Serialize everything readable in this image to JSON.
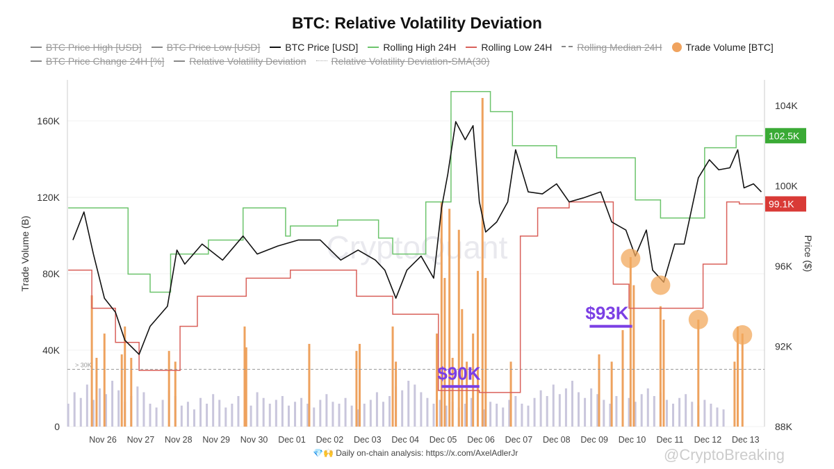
{
  "chart_data": {
    "type": "bar+line",
    "title": "BTC: Relative Volatility Deviation",
    "legend": [
      {
        "name": "BTC Price High [USD]",
        "color": "#888888",
        "hidden": true,
        "style": "line"
      },
      {
        "name": "BTC Price Low [USD]",
        "color": "#888888",
        "hidden": true,
        "style": "line"
      },
      {
        "name": "BTC Price [USD]",
        "color": "#111111",
        "hidden": false,
        "style": "line"
      },
      {
        "name": "Rolling High 24H",
        "color": "#6cc46c",
        "hidden": false,
        "style": "line"
      },
      {
        "name": "Rolling Low 24H",
        "color": "#d9605a",
        "hidden": false,
        "style": "line"
      },
      {
        "name": "Rolling Median 24H",
        "color": "#888888",
        "hidden": true,
        "style": "dash"
      },
      {
        "name": "Trade Volume [BTC]",
        "color": "#f0a35e",
        "hidden": false,
        "style": "dot"
      },
      {
        "name": "BTC Price Change 24H [%]",
        "color": "#888888",
        "hidden": true,
        "style": "line"
      },
      {
        "name": "Relative Volatility Deviation",
        "color": "#888888",
        "hidden": true,
        "style": "line"
      },
      {
        "name": "Relative Volatility Deviation-SMA(30)",
        "color": "#aaaaaa",
        "hidden": true,
        "style": "dot-line"
      }
    ],
    "legend_placement": "top",
    "x_ticks": [
      "Nov 26",
      "Nov 27",
      "Nov 28",
      "Nov 29",
      "Nov 30",
      "Dec 01",
      "Dec 02",
      "Dec 03",
      "Dec 04",
      "Dec 05",
      "Dec 06",
      "Dec 07",
      "Dec 08",
      "Dec 09",
      "Dec 10",
      "Dec 11",
      "Dec 12",
      "Dec 13"
    ],
    "y_left": {
      "label": "Trade Volume (B)",
      "ticks": [
        "0",
        "40K",
        "80K",
        "120K",
        "160K"
      ],
      "range": [
        0,
        180000
      ]
    },
    "y_right": {
      "label": "Price ($)",
      "ticks": [
        "88K",
        "92K",
        "96K",
        "100K",
        "104K"
      ],
      "range": [
        88000,
        105500
      ]
    },
    "threshold": {
      "label": "> 30K",
      "value": 30000
    },
    "price": [
      [
        "11-25 05:00",
        97300
      ],
      [
        "11-25 12:00",
        98700
      ],
      [
        "11-25 18:00",
        96600
      ],
      [
        "11-26 01:00",
        94400
      ],
      [
        "11-26 08:00",
        93700
      ],
      [
        "11-26 14:00",
        92300
      ],
      [
        "11-26 23:00",
        91600
      ],
      [
        "11-27 06:00",
        93000
      ],
      [
        "11-27 17:00",
        94000
      ],
      [
        "11-27 23:00",
        96800
      ],
      [
        "11-28 04:00",
        96100
      ],
      [
        "11-28 15:00",
        97100
      ],
      [
        "11-29 04:00",
        96300
      ],
      [
        "11-29 17:00",
        97500
      ],
      [
        "11-30 02:00",
        96600
      ],
      [
        "11-30 15:00",
        97000
      ],
      [
        "12-01 04:00",
        97300
      ],
      [
        "12-01 18:00",
        97300
      ],
      [
        "12-02 07:00",
        96300
      ],
      [
        "12-02 18:00",
        96800
      ],
      [
        "12-03 05:00",
        96300
      ],
      [
        "12-03 11:00",
        95800
      ],
      [
        "12-03 18:00",
        94400
      ],
      [
        "12-04 01:00",
        95800
      ],
      [
        "12-04 10:00",
        96500
      ],
      [
        "12-04 18:00",
        95400
      ],
      [
        "12-04 23:00",
        98900
      ],
      [
        "12-05 03:00",
        100600
      ],
      [
        "12-05 08:00",
        103200
      ],
      [
        "12-05 14:00",
        102300
      ],
      [
        "12-05 19:00",
        103000
      ],
      [
        "12-05 23:00",
        99200
      ],
      [
        "12-06 03:00",
        97700
      ],
      [
        "12-06 10:00",
        98200
      ],
      [
        "12-06 17:00",
        99200
      ],
      [
        "12-06 22:00",
        101800
      ],
      [
        "12-07 06:00",
        99700
      ],
      [
        "12-07 15:00",
        99600
      ],
      [
        "12-08 00:00",
        100100
      ],
      [
        "12-08 08:00",
        99200
      ],
      [
        "12-08 17:00",
        99400
      ],
      [
        "12-09 04:00",
        99700
      ],
      [
        "12-09 11:00",
        98200
      ],
      [
        "12-09 20:00",
        97800
      ],
      [
        "12-10 02:00",
        96500
      ],
      [
        "12-10 09:00",
        97800
      ],
      [
        "12-10 13:00",
        95800
      ],
      [
        "12-10 20:00",
        95200
      ],
      [
        "12-11 03:00",
        97100
      ],
      [
        "12-11 09:00",
        97100
      ],
      [
        "12-11 18:00",
        100400
      ],
      [
        "12-12 01:00",
        101300
      ],
      [
        "12-12 07:00",
        100800
      ],
      [
        "12-12 14:00",
        100900
      ],
      [
        "12-12 19:00",
        101800
      ],
      [
        "12-12 23:00",
        99900
      ],
      [
        "12-13 05:00",
        100100
      ],
      [
        "12-13 10:00",
        99700
      ]
    ],
    "rolling_high": [
      [
        "11-25 02:00",
        98900
      ],
      [
        "11-26 16:00",
        95600
      ],
      [
        "11-27 06:00",
        94700
      ],
      [
        "11-27 19:00",
        96600
      ],
      [
        "11-28 19:00",
        97300
      ],
      [
        "11-29 17:00",
        98900
      ],
      [
        "11-30 20:00",
        97500
      ],
      [
        "11-30 23:00",
        98000
      ],
      [
        "12-02 05:00",
        98300
      ],
      [
        "12-03 07:00",
        97400
      ],
      [
        "12-03 16:00",
        96600
      ],
      [
        "12-04 13:00",
        99200
      ],
      [
        "12-05 05:00",
        104700
      ],
      [
        "12-06 06:00",
        103700
      ],
      [
        "12-06 20:00",
        102000
      ],
      [
        "12-08 00:00",
        101400
      ],
      [
        "12-10 02:00",
        99300
      ],
      [
        "12-10 18:00",
        98400
      ],
      [
        "12-11 22:00",
        101900
      ],
      [
        "12-12 18:00",
        102500
      ],
      [
        "12-13 11:00",
        102500
      ]
    ],
    "rolling_low": [
      [
        "11-25 02:00",
        95800
      ],
      [
        "11-25 17:00",
        93900
      ],
      [
        "11-26 08:00",
        92200
      ],
      [
        "11-26 23:00",
        90800
      ],
      [
        "11-28 01:00",
        93000
      ],
      [
        "11-28 12:00",
        94500
      ],
      [
        "11-29 19:00",
        95400
      ],
      [
        "11-30 23:00",
        95800
      ],
      [
        "12-02 17:00",
        94500
      ],
      [
        "12-03 16:00",
        93600
      ],
      [
        "12-04 21:00",
        89800
      ],
      [
        "12-05 23:00",
        89700
      ],
      [
        "12-07 01:00",
        97500
      ],
      [
        "12-07 12:00",
        98900
      ],
      [
        "12-08 08:00",
        99200
      ],
      [
        "12-09 12:00",
        95100
      ],
      [
        "12-09 22:00",
        93900
      ],
      [
        "12-11 21:00",
        96100
      ],
      [
        "12-12 12:00",
        99200
      ],
      [
        "12-12 20:00",
        99100
      ],
      [
        "12-13 11:00",
        99100
      ]
    ],
    "last_high_label": "102.5K",
    "last_low_label": "99.1K",
    "volume_base": {
      "start": "11-25 02:00",
      "step_hours": 4,
      "values": [
        12000,
        18000,
        15000,
        22000,
        14000,
        20000,
        17000,
        24000,
        19000,
        13000,
        16000,
        21000,
        18000,
        12000,
        10000,
        14000,
        19000,
        16000,
        11000,
        13000,
        9000,
        15000,
        12000,
        17000,
        14000,
        10000,
        12000,
        16000,
        13000,
        11000,
        18000,
        15000,
        12000,
        14000,
        16000,
        11000,
        13000,
        15000,
        12000,
        10000,
        14000,
        17000,
        13000,
        12000,
        15000,
        11000,
        9000,
        12000,
        14000,
        18000,
        13000,
        16000,
        21000,
        19000,
        24000,
        22000,
        18000,
        15000,
        12000,
        14000,
        11000,
        13000,
        10000,
        12000,
        15000,
        11000,
        9000,
        13000,
        12000,
        10000,
        14000,
        16000,
        12000,
        11000,
        15000,
        19000,
        16000,
        22000,
        17000,
        20000,
        24000,
        18000,
        15000,
        20000,
        17000,
        14000,
        12000,
        16000,
        19000,
        15000,
        13000,
        17000,
        20000,
        16000,
        18000,
        14000,
        12000,
        15000,
        17000,
        13000,
        11000,
        14000,
        12000,
        10000,
        9000
      ]
    },
    "volume_spikes": [
      [
        "11-25 17:00",
        68700
      ],
      [
        "11-25 20:00",
        36000
      ],
      [
        "11-26 01:00",
        48700
      ],
      [
        "11-26 12:00",
        37800
      ],
      [
        "11-26 14:00",
        52400
      ],
      [
        "11-26 18:00",
        36000
      ],
      [
        "11-27 18:00",
        39600
      ],
      [
        "11-27 22:00",
        34000
      ],
      [
        "11-29 18:00",
        52400
      ],
      [
        "11-29 19:00",
        41500
      ],
      [
        "12-01 11:00",
        43300
      ],
      [
        "12-02 17:00",
        39600
      ],
      [
        "12-02 19:00",
        43300
      ],
      [
        "12-03 16:00",
        52400
      ],
      [
        "12-03 18:00",
        34000
      ],
      [
        "12-04 20:00",
        48700
      ],
      [
        "12-04 23:00",
        117800
      ],
      [
        "12-05 01:00",
        77800
      ],
      [
        "12-05 04:00",
        114000
      ],
      [
        "12-05 06:00",
        36000
      ],
      [
        "12-05 10:00",
        103000
      ],
      [
        "12-05 12:00",
        61500
      ],
      [
        "12-05 15:00",
        34000
      ],
      [
        "12-05 19:00",
        48700
      ],
      [
        "12-05 22:00",
        81500
      ],
      [
        "12-06 01:00",
        172000
      ],
      [
        "12-06 03:00",
        77800
      ],
      [
        "12-06 19:00",
        34000
      ],
      [
        "12-09 03:00",
        37800
      ],
      [
        "12-09 11:00",
        34000
      ],
      [
        "12-09 18:00",
        50500
      ],
      [
        "12-09 23:00",
        88700
      ],
      [
        "12-10 01:00",
        74000
      ],
      [
        "12-10 18:00",
        63000
      ],
      [
        "12-10 20:00",
        56000
      ],
      [
        "12-11 18:00",
        56000
      ],
      [
        "12-12 17:00",
        34000
      ],
      [
        "12-12 19:00",
        52400
      ],
      [
        "12-12 22:00",
        48700
      ]
    ],
    "highlight_circles": [
      [
        "12-09 23:00",
        88000
      ],
      [
        "12-10 18:00",
        74000
      ],
      [
        "12-11 18:00",
        56000
      ],
      [
        "12-12 22:00",
        48000
      ]
    ],
    "annotations": [
      {
        "text": "$90K",
        "price": 90000,
        "from": "12-04 23:00",
        "to": "12-05 23:00",
        "color": "#7b3fe4"
      },
      {
        "text": "$93K",
        "price": 93000,
        "from": "12-08 21:00",
        "to": "12-10 00:00",
        "color": "#7b3fe4"
      }
    ],
    "watermark": "CryptoQuant"
  },
  "footer": {
    "emoji": "💎🙌",
    "text": "Daily on-chain analysis: ",
    "link": "https://x.com/AxelAdlerJr"
  },
  "credit": "@CryptoBreaking"
}
